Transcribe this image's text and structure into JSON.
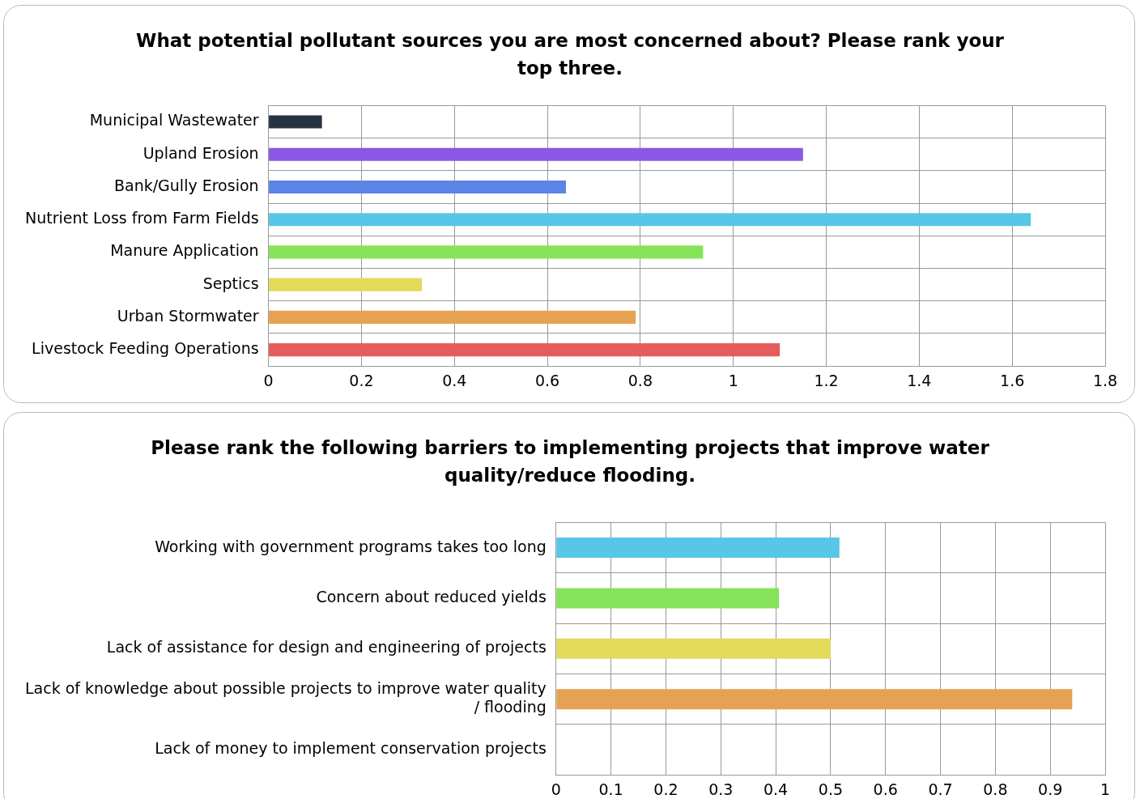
{
  "chart_data": [
    {
      "type": "bar",
      "orientation": "horizontal",
      "title": "What potential pollutant sources you are most concerned about? Please rank your top three.",
      "categories": [
        "Municipal Wastewater",
        "Upland Erosion",
        "Bank/Gully Erosion",
        "Nutrient Loss from Farm Fields",
        "Manure Application",
        "Septics",
        "Urban Stormwater",
        "Livestock Feeding Operations"
      ],
      "values": [
        0.115,
        1.15,
        0.64,
        1.64,
        0.935,
        0.33,
        0.79,
        1.1
      ],
      "colors": [
        "#263441",
        "#8c57e6",
        "#5b84e6",
        "#58c6e6",
        "#86e35a",
        "#e3d95a",
        "#e6a253",
        "#e65c5c"
      ],
      "xlim": [
        0,
        1.8
      ],
      "xticks": [
        0,
        0.2,
        0.4,
        0.6,
        0.8,
        1,
        1.2,
        1.4,
        1.6,
        1.8
      ],
      "grid": true,
      "legend": false
    },
    {
      "type": "bar",
      "orientation": "horizontal",
      "title": "Please rank the following barriers to implementing projects that improve water quality/reduce flooding.",
      "categories": [
        "Working with government programs takes too long",
        "Concern about reduced yields",
        "Lack of assistance for design and engineering of projects",
        "Lack of knowledge about possible projects to improve water quality / flooding",
        "Lack of money to implement conservation projects"
      ],
      "values": [
        0.516,
        0.406,
        0.5,
        0.94,
        0
      ],
      "colors": [
        "#58c6e6",
        "#86e35a",
        "#e3d95a",
        "#e6a253",
        "#e65c5c"
      ],
      "xlim": [
        0,
        1
      ],
      "xticks": [
        0,
        0.1,
        0.2,
        0.3,
        0.4,
        0.5,
        0.6,
        0.7,
        0.8,
        0.9,
        1
      ],
      "grid": true,
      "legend": false
    }
  ]
}
